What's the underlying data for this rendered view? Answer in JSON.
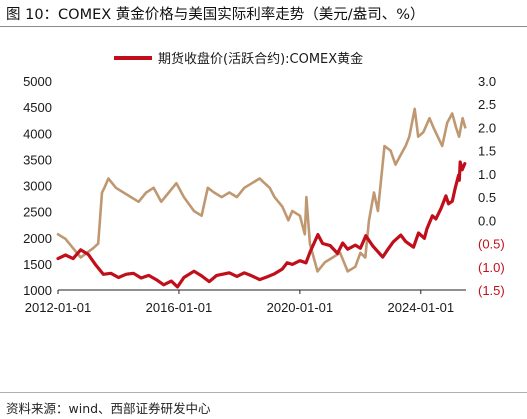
{
  "title": "图 10：COMEX 黄金价格与美国实际利率走势（美元/盎司、%）",
  "source": "资料来源：wind、西部证券研发中心",
  "chart_data": {
    "type": "line",
    "title": "图 10：COMEX 黄金价格与美国实际利率走势（美元/盎司、%）",
    "legend": {
      "placement": "top-center",
      "entries": [
        "期货收盘价(活跃合约):COMEX黄金"
      ]
    },
    "x_axis": {
      "type": "date",
      "range": [
        "2012-01-01",
        "2025-06-30"
      ],
      "tick_values": [
        "2012-01-01",
        "2016-01-01",
        "2020-01-01",
        "2024-01-01"
      ],
      "tick_labels": [
        "2012-01-01",
        "2016-01-01",
        "2020-01-01",
        "2024-01-01"
      ]
    },
    "y_left": {
      "range": [
        1000,
        5000
      ],
      "tick_values": [
        1000,
        1500,
        2000,
        2500,
        3000,
        3500,
        4000,
        4500,
        5000
      ],
      "tick_labels": [
        "1000",
        "1500",
        "2000",
        "2500",
        "3000",
        "3500",
        "4000",
        "4500",
        "5000"
      ]
    },
    "y_right": {
      "range": [
        -1.5,
        3.0
      ],
      "tick_values": [
        3.0,
        2.5,
        2.0,
        1.5,
        1.0,
        0.5,
        0.0,
        -0.5,
        -1.0,
        -1.5
      ],
      "tick_labels": [
        "3.0",
        "2.5",
        "2.0",
        "1.5",
        "1.0",
        "0.5",
        "0.0",
        "(0.5)",
        "(1.0)",
        "(1.5)"
      ],
      "negative_label_color": "#c0121b"
    },
    "grid": false,
    "colors": {
      "gold": "#c00e1a",
      "real_rate": "#bf9872"
    },
    "series": [
      {
        "name": "期货收盘价(活跃合约):COMEX黄金",
        "axis": "left",
        "color": "#c00e1a",
        "x": [
          "2012-01-01",
          "2012-04-01",
          "2012-07-01",
          "2012-10-01",
          "2013-01-01",
          "2013-04-01",
          "2013-07-01",
          "2013-10-01",
          "2014-01-01",
          "2014-04-01",
          "2014-07-01",
          "2014-10-01",
          "2015-01-01",
          "2015-04-01",
          "2015-07-01",
          "2015-10-01",
          "2015-12-15",
          "2016-03-01",
          "2016-07-01",
          "2016-10-01",
          "2017-01-01",
          "2017-04-01",
          "2017-09-01",
          "2017-12-01",
          "2018-03-01",
          "2018-06-01",
          "2018-09-01",
          "2018-12-01",
          "2019-03-01",
          "2019-06-01",
          "2019-08-01",
          "2019-10-01",
          "2020-01-01",
          "2020-03-15",
          "2020-05-01",
          "2020-08-06",
          "2020-10-01",
          "2021-01-01",
          "2021-03-31",
          "2021-06-01",
          "2021-08-01",
          "2021-11-01",
          "2022-01-01",
          "2022-03-08",
          "2022-06-01",
          "2022-09-28",
          "2022-12-01",
          "2023-02-01",
          "2023-05-04",
          "2023-07-01",
          "2023-10-05",
          "2023-12-04",
          "2024-02-14",
          "2024-03-15",
          "2024-05-20",
          "2024-07-01",
          "2024-09-01",
          "2024-10-30",
          "2024-12-01",
          "2025-01-15",
          "2025-02-20",
          "2025-04-01",
          "2025-04-10",
          "2025-04-21",
          "2025-05-15",
          "2025-06-15"
        ],
        "values": [
          1600,
          1670,
          1600,
          1770,
          1680,
          1480,
          1300,
          1320,
          1240,
          1300,
          1320,
          1230,
          1280,
          1200,
          1100,
          1170,
          1060,
          1240,
          1360,
          1270,
          1160,
          1280,
          1330,
          1260,
          1330,
          1270,
          1200,
          1250,
          1310,
          1400,
          1520,
          1490,
          1560,
          1520,
          1720,
          2060,
          1890,
          1850,
          1700,
          1900,
          1780,
          1860,
          1800,
          2040,
          1840,
          1630,
          1780,
          1920,
          2050,
          1930,
          1820,
          2090,
          1990,
          2170,
          2420,
          2360,
          2560,
          2800,
          2650,
          2700,
          2950,
          3200,
          3100,
          3450,
          3300,
          3420
        ]
      },
      {
        "name": "",
        "axis": "right",
        "color": "#bf9872",
        "x": [
          "2012-01-01",
          "2012-04-01",
          "2012-07-01",
          "2012-10-01",
          "2012-12-15",
          "2013-03-01",
          "2013-05-01",
          "2013-06-15",
          "2013-07-15",
          "2013-09-01",
          "2013-12-01",
          "2014-03-01",
          "2014-06-01",
          "2014-09-01",
          "2014-12-01",
          "2015-03-01",
          "2015-06-01",
          "2015-09-01",
          "2015-12-01",
          "2016-03-01",
          "2016-07-01",
          "2016-10-01",
          "2016-12-15",
          "2017-03-01",
          "2017-06-01",
          "2017-09-01",
          "2017-12-01",
          "2018-03-01",
          "2018-06-01",
          "2018-09-01",
          "2018-11-01",
          "2019-01-01",
          "2019-03-01",
          "2019-06-01",
          "2019-08-15",
          "2019-10-01",
          "2020-01-01",
          "2020-03-01",
          "2020-03-20",
          "2020-05-01",
          "2020-08-01",
          "2020-11-01",
          "2021-02-01",
          "2021-05-01",
          "2021-08-01",
          "2021-11-01",
          "2022-01-01",
          "2022-03-01",
          "2022-04-15",
          "2022-06-14",
          "2022-08-01",
          "2022-10-20",
          "2023-01-01",
          "2023-03-01",
          "2023-05-01",
          "2023-07-01",
          "2023-08-15",
          "2023-10-19",
          "2023-12-01",
          "2024-02-01",
          "2024-04-15",
          "2024-06-01",
          "2024-09-15",
          "2024-11-15",
          "2025-01-14",
          "2025-03-01",
          "2025-04-08",
          "2025-05-20",
          "2025-06-20"
        ],
        "values": [
          -0.3,
          -0.4,
          -0.6,
          -0.8,
          -0.7,
          -0.6,
          -0.5,
          0.6,
          0.7,
          0.9,
          0.7,
          0.6,
          0.5,
          0.4,
          0.6,
          0.7,
          0.4,
          0.6,
          0.8,
          0.5,
          0.2,
          0.1,
          0.7,
          0.6,
          0.5,
          0.6,
          0.5,
          0.7,
          0.8,
          0.9,
          0.8,
          0.7,
          0.5,
          0.3,
          0.0,
          0.2,
          0.1,
          -0.3,
          0.5,
          -0.5,
          -1.1,
          -0.9,
          -0.8,
          -0.7,
          -1.1,
          -1.0,
          -0.7,
          -0.8,
          0.0,
          0.6,
          0.2,
          1.6,
          1.5,
          1.2,
          1.4,
          1.6,
          1.8,
          2.4,
          1.8,
          1.9,
          2.2,
          2.0,
          1.6,
          2.1,
          2.3,
          2.0,
          1.8,
          2.2,
          2.0
        ]
      }
    ]
  }
}
